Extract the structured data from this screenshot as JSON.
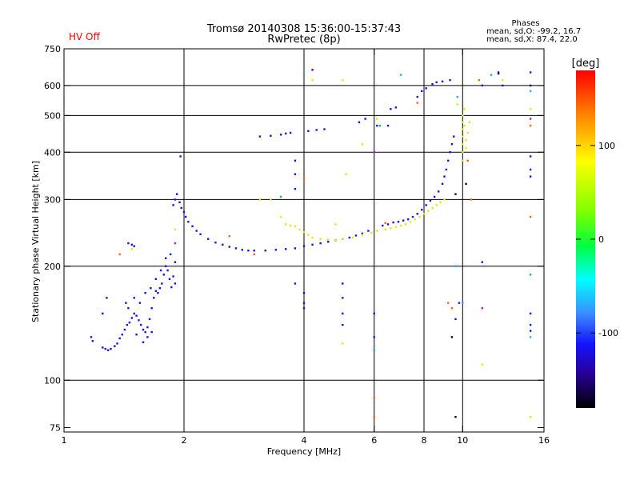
{
  "status": {
    "label": "HV Off",
    "color": "#ff0000"
  },
  "header": {
    "title": "Tromsø 20140308 15:36:00-15:37:43",
    "subtitle": "RwPretec (8p)"
  },
  "stats": {
    "heading": "Phases",
    "line_o": "mean, sd,O: -99.2, 16.7",
    "line_x": "mean, sd,X:  87.4, 22.0"
  },
  "colorbar": {
    "unit": "[deg]",
    "ticks": [
      "100",
      "0",
      "-100"
    ],
    "tick_values": [
      100,
      0,
      -100
    ],
    "range": [
      -180,
      180
    ]
  },
  "chart_data": {
    "type": "scatter",
    "xscale": "log2",
    "yscale": "log",
    "xlim": [
      1,
      16
    ],
    "ylim": [
      73,
      750
    ],
    "xlabel": "Frequency [MHz]",
    "ylabel": "Stationary phase Virtual Height [km]",
    "xticks": [
      1,
      2,
      4,
      6,
      8,
      10,
      16
    ],
    "xtick_labels": [
      "1",
      "2",
      "4",
      "6",
      "8",
      "10",
      "16"
    ],
    "yticks": [
      75,
      100,
      200,
      300,
      400,
      500,
      600,
      750
    ],
    "ytick_labels": [
      "75",
      "100",
      "200",
      "300",
      "400",
      "500",
      "600",
      "750"
    ],
    "grid": true,
    "grid_x": [
      2,
      4,
      6,
      8,
      10
    ],
    "grid_y": [
      100,
      200,
      300,
      400,
      500,
      600
    ],
    "series": [
      {
        "color": "#1414e6",
        "points": [
          [
            1.17,
            130
          ],
          [
            1.18,
            127
          ],
          [
            1.25,
            122
          ],
          [
            1.27,
            121
          ],
          [
            1.29,
            120
          ],
          [
            1.31,
            121
          ],
          [
            1.34,
            123
          ],
          [
            1.36,
            125
          ],
          [
            1.38,
            129
          ],
          [
            1.4,
            132
          ],
          [
            1.42,
            136
          ],
          [
            1.44,
            140
          ],
          [
            1.46,
            142
          ],
          [
            1.48,
            146
          ],
          [
            1.5,
            150
          ],
          [
            1.52,
            148
          ],
          [
            1.54,
            144
          ],
          [
            1.56,
            140
          ],
          [
            1.58,
            136
          ],
          [
            1.6,
            134
          ],
          [
            1.62,
            138
          ],
          [
            1.64,
            145
          ],
          [
            1.66,
            155
          ],
          [
            1.68,
            165
          ],
          [
            1.7,
            172
          ],
          [
            1.72,
            170
          ],
          [
            1.74,
            175
          ],
          [
            1.76,
            180
          ],
          [
            1.78,
            190
          ],
          [
            1.8,
            200
          ],
          [
            1.82,
            195
          ],
          [
            1.84,
            185
          ],
          [
            1.86,
            176
          ],
          [
            1.88,
            188
          ],
          [
            1.9,
            205
          ],
          [
            1.43,
            160
          ],
          [
            1.45,
            155
          ],
          [
            1.5,
            165
          ],
          [
            1.55,
            160
          ],
          [
            1.6,
            170
          ],
          [
            1.65,
            175
          ],
          [
            1.7,
            185
          ],
          [
            1.75,
            195
          ],
          [
            1.8,
            210
          ],
          [
            1.85,
            215
          ],
          [
            1.45,
            230
          ],
          [
            1.48,
            228
          ],
          [
            1.5,
            226
          ],
          [
            1.25,
            150
          ],
          [
            1.28,
            165
          ],
          [
            1.9,
            180
          ],
          [
            1.52,
            132
          ],
          [
            1.58,
            126
          ],
          [
            1.62,
            130
          ],
          [
            1.66,
            134
          ],
          [
            1.88,
            290
          ],
          [
            1.9,
            300
          ],
          [
            1.92,
            310
          ],
          [
            1.95,
            295
          ],
          [
            1.97,
            285
          ],
          [
            2.0,
            278
          ],
          [
            2.02,
            270
          ],
          [
            2.05,
            262
          ],
          [
            2.1,
            255
          ],
          [
            2.15,
            248
          ],
          [
            2.2,
            243
          ],
          [
            2.3,
            236
          ],
          [
            2.4,
            231
          ],
          [
            2.5,
            228
          ],
          [
            2.6,
            225
          ],
          [
            2.7,
            223
          ],
          [
            2.8,
            221
          ],
          [
            2.9,
            220
          ],
          [
            3.0,
            220
          ],
          [
            3.2,
            220
          ],
          [
            3.4,
            221
          ],
          [
            3.6,
            222
          ],
          [
            3.8,
            223
          ],
          [
            4.0,
            226
          ],
          [
            4.2,
            228
          ],
          [
            4.4,
            230
          ],
          [
            4.6,
            232
          ],
          [
            4.8,
            234
          ],
          [
            5.0,
            236
          ],
          [
            5.2,
            238
          ],
          [
            5.4,
            241
          ],
          [
            5.6,
            244
          ],
          [
            5.8,
            248
          ],
          [
            1.96,
            390
          ],
          [
            6.3,
            256
          ],
          [
            6.5,
            258
          ],
          [
            6.7,
            261
          ],
          [
            6.9,
            262
          ],
          [
            7.1,
            264
          ],
          [
            7.3,
            266
          ],
          [
            7.5,
            270
          ],
          [
            7.7,
            275
          ],
          [
            7.9,
            282
          ],
          [
            8.1,
            290
          ],
          [
            8.3,
            298
          ],
          [
            8.5,
            305
          ],
          [
            8.7,
            315
          ],
          [
            8.9,
            330
          ],
          [
            9.0,
            345
          ],
          [
            9.1,
            360
          ],
          [
            9.2,
            380
          ],
          [
            9.3,
            400
          ],
          [
            9.4,
            420
          ],
          [
            9.5,
            440
          ],
          [
            3.1,
            440
          ],
          [
            3.3,
            442
          ],
          [
            3.5,
            445
          ],
          [
            3.6,
            448
          ],
          [
            3.7,
            450
          ],
          [
            4.1,
            455
          ],
          [
            4.3,
            458
          ],
          [
            4.5,
            460
          ],
          [
            5.5,
            480
          ],
          [
            5.7,
            490
          ],
          [
            6.6,
            520
          ],
          [
            6.8,
            525
          ],
          [
            7.7,
            560
          ],
          [
            7.9,
            580
          ],
          [
            8.1,
            590
          ],
          [
            8.4,
            605
          ],
          [
            8.6,
            612
          ],
          [
            8.9,
            615
          ],
          [
            9.3,
            620
          ],
          [
            3.8,
            380
          ],
          [
            3.8,
            350
          ],
          [
            3.8,
            320
          ],
          [
            3.8,
            180
          ],
          [
            4.0,
            170
          ],
          [
            4.0,
            160
          ],
          [
            4.0,
            155
          ],
          [
            5.0,
            180
          ],
          [
            5.0,
            165
          ],
          [
            5.0,
            150
          ],
          [
            5.0,
            140
          ],
          [
            6.0,
            150
          ],
          [
            6.0,
            130
          ],
          [
            9.6,
            145
          ],
          [
            9.8,
            160
          ],
          [
            11.2,
            205
          ],
          [
            11.2,
            600
          ],
          [
            12.3,
            650
          ],
          [
            14.8,
            650
          ],
          [
            14.8,
            390
          ],
          [
            14.8,
            360
          ],
          [
            14.8,
            345
          ],
          [
            14.8,
            150
          ],
          [
            14.8,
            140
          ],
          [
            14.8,
            135
          ],
          [
            12.6,
            600
          ],
          [
            6.1,
            470
          ],
          [
            6.5,
            470
          ],
          [
            4.2,
            660
          ]
        ]
      },
      {
        "color": "#e6e614",
        "points": [
          [
            3.6,
            258
          ],
          [
            3.7,
            256
          ],
          [
            3.8,
            255
          ],
          [
            3.9,
            250
          ],
          [
            4.0,
            246
          ],
          [
            4.1,
            242
          ],
          [
            4.2,
            238
          ],
          [
            4.4,
            236
          ],
          [
            4.6,
            235
          ],
          [
            4.8,
            234
          ],
          [
            5.0,
            236
          ],
          [
            5.3,
            238
          ],
          [
            5.6,
            242
          ],
          [
            5.9,
            245
          ],
          [
            6.1,
            248
          ],
          [
            6.4,
            250
          ],
          [
            6.6,
            252
          ],
          [
            6.8,
            254
          ],
          [
            7.0,
            256
          ],
          [
            7.2,
            258
          ],
          [
            7.4,
            262
          ],
          [
            7.6,
            266
          ],
          [
            7.8,
            270
          ],
          [
            8.0,
            275
          ],
          [
            8.2,
            280
          ],
          [
            8.4,
            285
          ],
          [
            8.6,
            290
          ],
          [
            8.8,
            295
          ],
          [
            9.0,
            300
          ],
          [
            10.0,
            380
          ],
          [
            10.0,
            400
          ],
          [
            10.0,
            420
          ],
          [
            10.0,
            440
          ],
          [
            10.0,
            460
          ],
          [
            10.0,
            480
          ],
          [
            10.0,
            500
          ],
          [
            10.1,
            520
          ],
          [
            10.1,
            470
          ],
          [
            10.2,
            430
          ],
          [
            10.2,
            410
          ],
          [
            10.3,
            450
          ],
          [
            1.9,
            250
          ],
          [
            3.3,
            300
          ],
          [
            6.1,
            490
          ],
          [
            5.1,
            350
          ],
          [
            5.6,
            420
          ],
          [
            4.2,
            620
          ],
          [
            5.0,
            620
          ],
          [
            12.6,
            620
          ],
          [
            14.8,
            520
          ],
          [
            14.8,
            80
          ],
          [
            11.2,
            110
          ],
          [
            5.0,
            125
          ],
          [
            1.48,
            222
          ],
          [
            3.1,
            300
          ],
          [
            3.5,
            270
          ],
          [
            4.8,
            258
          ],
          [
            9.7,
            535
          ],
          [
            10.4,
            480
          ]
        ]
      },
      {
        "color": "#1eaaff",
        "points": [
          [
            4.0,
            650
          ],
          [
            6.0,
            120
          ],
          [
            9.6,
            200
          ],
          [
            14.8,
            130
          ],
          [
            14.8,
            580
          ],
          [
            9.7,
            560
          ],
          [
            7.0,
            640
          ],
          [
            11.8,
            640
          ],
          [
            10.0,
            160
          ]
        ]
      },
      {
        "color": "#ff6414",
        "points": [
          [
            4.0,
            340
          ],
          [
            3.0,
            215
          ],
          [
            1.38,
            215
          ],
          [
            6.0,
            90
          ],
          [
            6.0,
            80
          ],
          [
            9.4,
            155
          ],
          [
            9.2,
            160
          ],
          [
            10.5,
            300
          ],
          [
            11.0,
            620
          ],
          [
            10.3,
            380
          ],
          [
            7.7,
            540
          ],
          [
            6.4,
            260
          ],
          [
            2.6,
            240
          ],
          [
            14.8,
            470
          ],
          [
            14.8,
            270
          ]
        ]
      },
      {
        "color": "#000050",
        "points": [
          [
            9.4,
            130
          ],
          [
            9.6,
            80
          ],
          [
            9.6,
            310
          ],
          [
            12.3,
            645
          ],
          [
            14.8,
            600
          ],
          [
            10.2,
            330
          ]
        ]
      },
      {
        "color": "#00c83c",
        "points": [
          [
            3.5,
            305
          ],
          [
            6.2,
            470
          ],
          [
            14.8,
            190
          ]
        ]
      },
      {
        "color": "#aa1ecc",
        "points": [
          [
            6.0,
            400
          ],
          [
            1.9,
            230
          ],
          [
            11.2,
            155
          ],
          [
            14.8,
            490
          ]
        ]
      }
    ]
  }
}
